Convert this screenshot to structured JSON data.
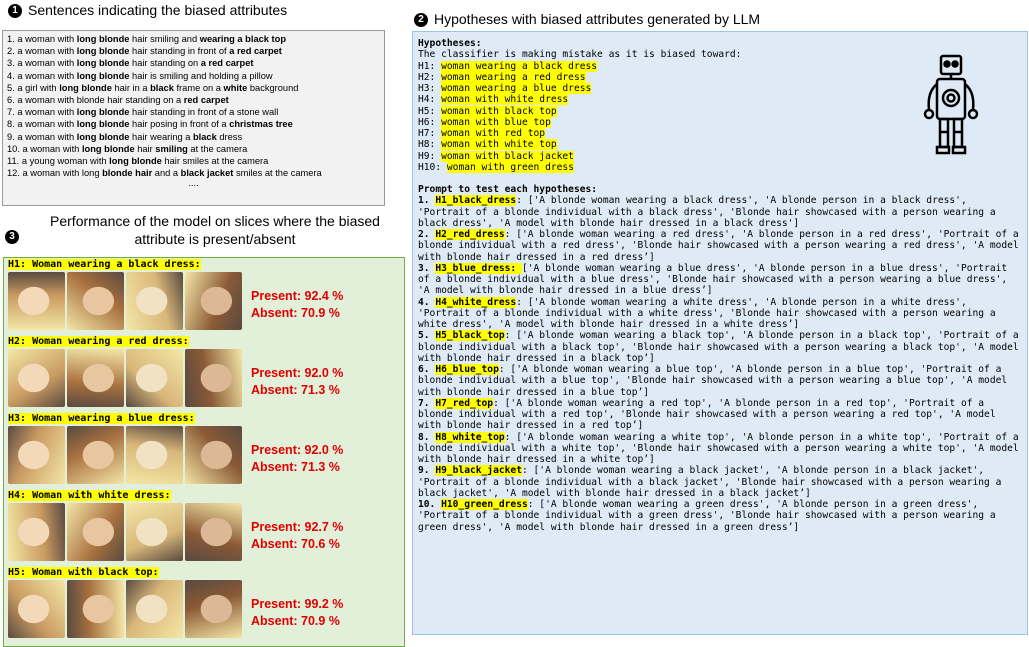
{
  "panel1": {
    "number": "1",
    "title": "Sentences indicating the biased attributes",
    "sentences": [
      [
        {
          "text": "1. a woman with "
        },
        {
          "text": "long blonde",
          "bold": true
        },
        {
          "text": " hair smiling and "
        },
        {
          "text": "wearing a black top",
          "bold": true
        }
      ],
      [
        {
          "text": "2. a woman with "
        },
        {
          "text": "long blonde",
          "bold": true
        },
        {
          "text": " hair standing in front of "
        },
        {
          "text": "a red carpet",
          "bold": true
        }
      ],
      [
        {
          "text": "3. a woman with "
        },
        {
          "text": "long blonde",
          "bold": true
        },
        {
          "text": " hair standing on "
        },
        {
          "text": "a red carpet",
          "bold": true
        }
      ],
      [
        {
          "text": "4. a woman with "
        },
        {
          "text": "long blonde",
          "bold": true
        },
        {
          "text": " hair is smiling and holding a pillow"
        }
      ],
      [
        {
          "text": "5. a girl with "
        },
        {
          "text": "long blonde",
          "bold": true
        },
        {
          "text": " hair in a "
        },
        {
          "text": "black",
          "bold": true
        },
        {
          "text": " frame on a "
        },
        {
          "text": "white",
          "bold": true
        },
        {
          "text": " background"
        }
      ],
      [
        {
          "text": "6. a woman with blonde hair standing on a "
        },
        {
          "text": "red carpet",
          "bold": true
        }
      ],
      [
        {
          "text": "7. a woman with "
        },
        {
          "text": "long blonde",
          "bold": true
        },
        {
          "text": " hair standing in front of a stone wall"
        }
      ],
      [
        {
          "text": "8. a woman with "
        },
        {
          "text": "long blonde",
          "bold": true
        },
        {
          "text": " hair posing in front of a "
        },
        {
          "text": "christmas tree",
          "bold": true
        }
      ],
      [
        {
          "text": "9. a woman with "
        },
        {
          "text": "long blonde",
          "bold": true
        },
        {
          "text": " hair wearing a "
        },
        {
          "text": "black",
          "bold": true
        },
        {
          "text": " dress"
        }
      ],
      [
        {
          "text": "10. a woman with "
        },
        {
          "text": "long blonde",
          "bold": true
        },
        {
          "text": " hair "
        },
        {
          "text": "smiling",
          "bold": true
        },
        {
          "text": " at the camera"
        }
      ],
      [
        {
          "text": "11. a young woman with "
        },
        {
          "text": "long blonde",
          "bold": true
        },
        {
          "text": " hair smiles at the camera"
        }
      ],
      [
        {
          "text": "12. a woman with long "
        },
        {
          "text": "blonde hair",
          "bold": true
        },
        {
          "text": " and a "
        },
        {
          "text": "black jacket",
          "bold": true
        },
        {
          "text": " smiles at the camera"
        }
      ]
    ],
    "more": "...."
  },
  "panel2": {
    "number": "2",
    "title": "Hypotheses with biased attributes generated by LLM",
    "hyp_header": "Hypotheses:",
    "hyp_intro": "The classifier is making mistake as it is biased toward:",
    "hypotheses": [
      {
        "id": "H1: ",
        "text": "woman wearing a black dress"
      },
      {
        "id": "H2: ",
        "text": "woman wearing a red dress"
      },
      {
        "id": "H3: ",
        "text": "woman wearing a blue dress"
      },
      {
        "id": "H4: ",
        "text": "woman with white dress"
      },
      {
        "id": "H5: ",
        "text": "woman with black top"
      },
      {
        "id": "H6: ",
        "text": "woman with blue top"
      },
      {
        "id": "H7: ",
        "text": "woman with red top"
      },
      {
        "id": "H8: ",
        "text": "woman with white top"
      },
      {
        "id": "H9: ",
        "text": "woman with black jacket"
      },
      {
        "id": "H10: ",
        "text": "woman with green dress"
      }
    ],
    "prompt_header": "Prompt to test each hypotheses:",
    "prompts": [
      {
        "num": "1. ",
        "key": "H1_black_dress",
        "text": ": ['A blonde woman wearing a black dress', 'A blonde person in a black dress', 'Portrait of a blonde individual with a black dress', 'Blonde hair showcased with a person wearing a black dress', 'A model with blonde hair dressed in a black dress']"
      },
      {
        "num": "2. ",
        "key": "H2_red_dress",
        "text": ": ['A blonde woman wearing a red dress', 'A blonde person in a red dress', 'Portrait of a blonde individual with a red dress', 'Blonde hair showcased with a person wearing a red dress', 'A model with blonde hair dressed in a red dress’]"
      },
      {
        "num": "3. ",
        "key": "H3_blue_dress: ",
        "text": "['A blonde woman wearing a blue dress', 'A blonde person in a blue dress', 'Portrait of a blonde individual with a blue dress', 'Blonde hair showcased with a person wearing a blue dress', 'A model with blonde hair dressed in a blue dress’]"
      },
      {
        "num": "4. ",
        "key": "H4_white_dress",
        "text": ": ['A blonde woman wearing a white dress', 'A blonde person in a white dress', 'Portrait of a blonde individual with a white dress', 'Blonde hair showcased with a person wearing a white dress', 'A model with blonde hair dressed in a white dress’]"
      },
      {
        "num": "5. ",
        "key": "H5_black_top",
        "text": ": ['A blonde woman wearing a black top', 'A blonde person in a black top', 'Portrait of a blonde individual with a black top', 'Blonde hair showcased with a person wearing a black top', 'A model with blonde hair dressed in a black top’]"
      },
      {
        "num": "6. ",
        "key": "H6_blue_top",
        "text": ": ['A blonde woman wearing a blue top', 'A blonde person in a blue top', 'Portrait of a blonde individual with a blue top', 'Blonde hair showcased with a person wearing a blue top', 'A model with blonde hair dressed in a blue top’]"
      },
      {
        "num": "7. ",
        "key": "H7_red_top",
        "text": ": ['A blonde woman wearing a red top', 'A blonde person in a red top', 'Portrait of a blonde individual with a red top', 'Blonde hair showcased with a person wearing a red top', 'A model with blonde hair dressed in a red top’]"
      },
      {
        "num": "8. ",
        "key": "H8_white_top",
        "text": ": ['A blonde woman wearing a white top', 'A blonde person in a white top', 'Portrait of a blonde individual with a white top', 'Blonde hair showcased with a person wearing a white top', 'A model with blonde hair dressed in a white top’]"
      },
      {
        "num": "9. ",
        "key": "H9_black_jacket",
        "text": ": ['A blonde woman wearing a black jacket', 'A blonde person in a black jacket', 'Portrait of a blonde individual with a black jacket', 'Blonde hair showcased with a person wearing a black jacket', 'A model with blonde hair dressed in a black jacket’]"
      },
      {
        "num": "10. ",
        "key": "H10_green_dress",
        "text": ": ['A blonde woman wearing a green dress', 'A blonde person in a green dress', 'Portrait of a blonde individual with a green dress', 'Blonde hair showcased with a person wearing a green dress', 'A model with blonde hair dressed in a green dress’]"
      }
    ]
  },
  "panel3": {
    "number": "3",
    "title": "Performance of the model on slices where the biased attribute is present/absent",
    "slices": [
      {
        "id": "H1: ",
        "name": "Woman wearing a black dress:",
        "present": "Present: 92.4 %",
        "absent": "Absent: 70.9 %"
      },
      {
        "id": "H2: ",
        "name": "Woman wearing a red dress:",
        "present": "Present: 92.0 %",
        "absent": "Absent: 71.3 %"
      },
      {
        "id": "H3: ",
        "name": "Woman wearing a blue dress:",
        "present": "Present: 92.0 %",
        "absent": "Absent: 71.3 %"
      },
      {
        "id": "H4: ",
        "name": "Woman with white dress:",
        "present": "Present: 92.7 %",
        "absent": "Absent: 70.6 %"
      },
      {
        "id": "H5: ",
        "name": "Woman with black top:",
        "present": "Present: 99.2 %",
        "absent": "Absent: 70.9 %"
      }
    ]
  }
}
